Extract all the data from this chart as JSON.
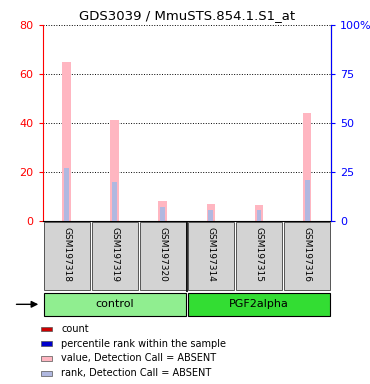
{
  "title": "GDS3039 / MmuSTS.854.1.S1_at",
  "samples": [
    "GSM197318",
    "GSM197319",
    "GSM197320",
    "GSM197314",
    "GSM197315",
    "GSM197316"
  ],
  "groups": [
    {
      "name": "control",
      "indices": [
        0,
        1,
        2
      ],
      "color": "#90EE90"
    },
    {
      "name": "PGF2alpha",
      "indices": [
        3,
        4,
        5
      ],
      "color": "#33DD33"
    }
  ],
  "value_absent": [
    65.0,
    41.0,
    8.0,
    7.0,
    6.5,
    44.0
  ],
  "rank_absent": [
    27.0,
    20.0,
    7.0,
    5.5,
    5.5,
    21.0
  ],
  "ylim_left": [
    0,
    80
  ],
  "ylim_right": [
    0,
    100
  ],
  "y_ticks_left": [
    0,
    20,
    40,
    60,
    80
  ],
  "y_ticks_right": [
    0,
    25,
    50,
    75,
    100
  ],
  "bar_width": 0.18,
  "rank_bar_width": 0.1,
  "color_value_absent": "#FFB6C1",
  "color_rank_absent": "#B0B8E0",
  "legend_items": [
    {
      "label": "count",
      "color": "#CC0000"
    },
    {
      "label": "percentile rank within the sample",
      "color": "#0000CC"
    },
    {
      "label": "value, Detection Call = ABSENT",
      "color": "#FFB6C1"
    },
    {
      "label": "rank, Detection Call = ABSENT",
      "color": "#B0B8E0"
    }
  ],
  "figsize": [
    3.7,
    3.84
  ],
  "dpi": 100
}
